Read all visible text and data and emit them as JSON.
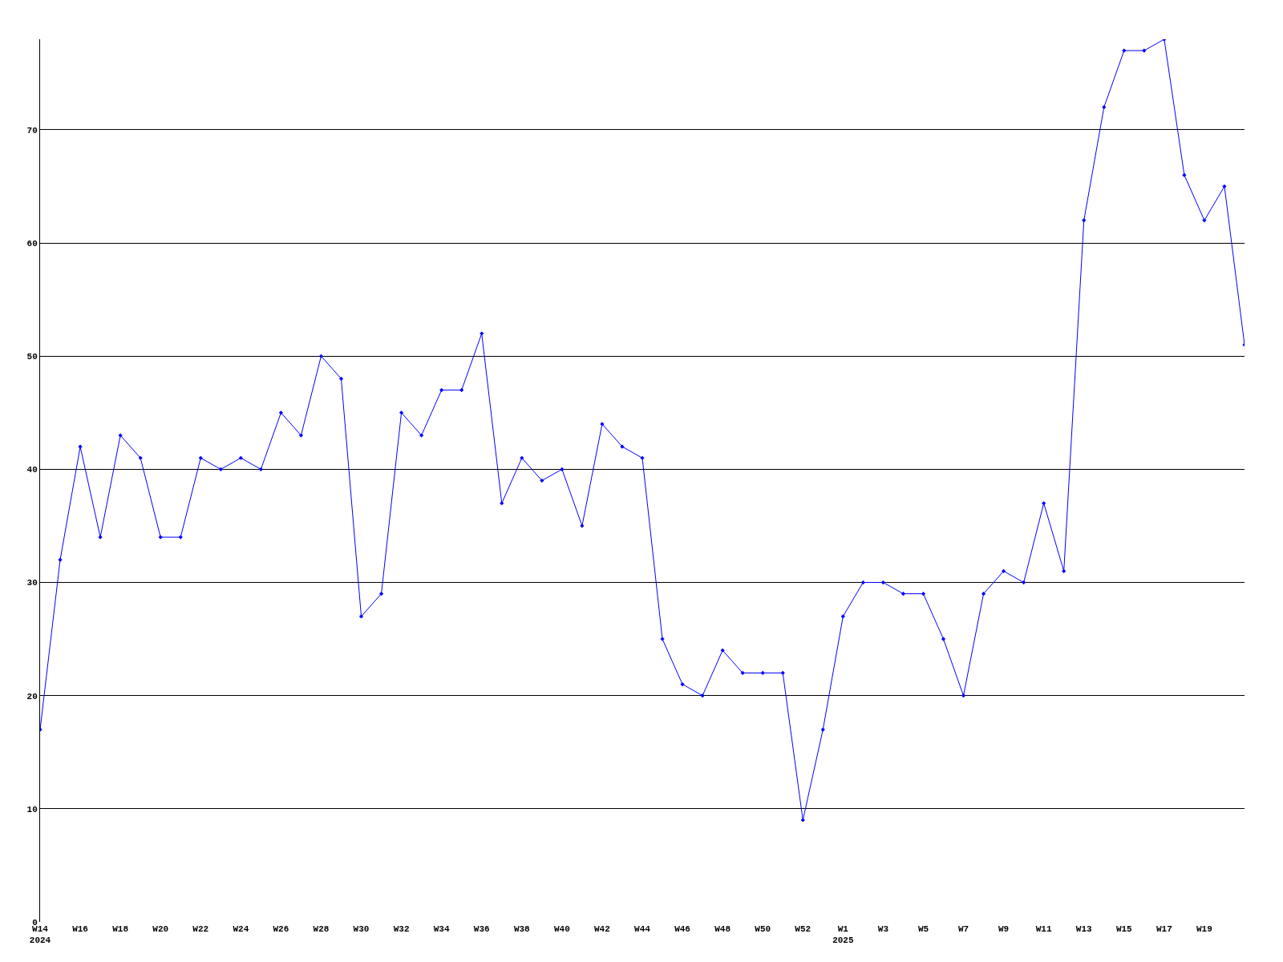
{
  "chart_data": {
    "type": "line",
    "categories": [
      "W14\n2024",
      null,
      "W16",
      null,
      "W18",
      null,
      "W20",
      null,
      "W22",
      null,
      "W24",
      null,
      "W26",
      null,
      "W28",
      null,
      "W30",
      null,
      "W32",
      null,
      "W34",
      null,
      "W36",
      null,
      "W38",
      null,
      "W40",
      null,
      "W42",
      null,
      "W44",
      null,
      "W46",
      null,
      "W48",
      null,
      "W50",
      null,
      "W52",
      null,
      "W1\n2025",
      null,
      "W3",
      null,
      "W5",
      null,
      "W7",
      null,
      "W9",
      null,
      "W11",
      null,
      "W13",
      null,
      "W15",
      null,
      "W17",
      null,
      "W19",
      null,
      null
    ],
    "series": [
      {
        "color": "#0000ff",
        "values": [
          17,
          32,
          42,
          34,
          43,
          41,
          34,
          34,
          41,
          40,
          41,
          40,
          45,
          43,
          50,
          48,
          27,
          29,
          45,
          43,
          47,
          47,
          52,
          37,
          41,
          39,
          40,
          35,
          44,
          42,
          41,
          25,
          21,
          20,
          24,
          22,
          22,
          22,
          9,
          17,
          27,
          30,
          30,
          29,
          29,
          25,
          20,
          29,
          31,
          30,
          37,
          31,
          62,
          72,
          77,
          77,
          78,
          66,
          62,
          65,
          51
        ]
      }
    ],
    "ylim": [
      0,
      78
    ],
    "yticks": [
      0,
      10,
      20,
      30,
      40,
      50,
      60,
      70
    ],
    "grid": "y",
    "marker": "diamond",
    "line_style": "solid"
  }
}
